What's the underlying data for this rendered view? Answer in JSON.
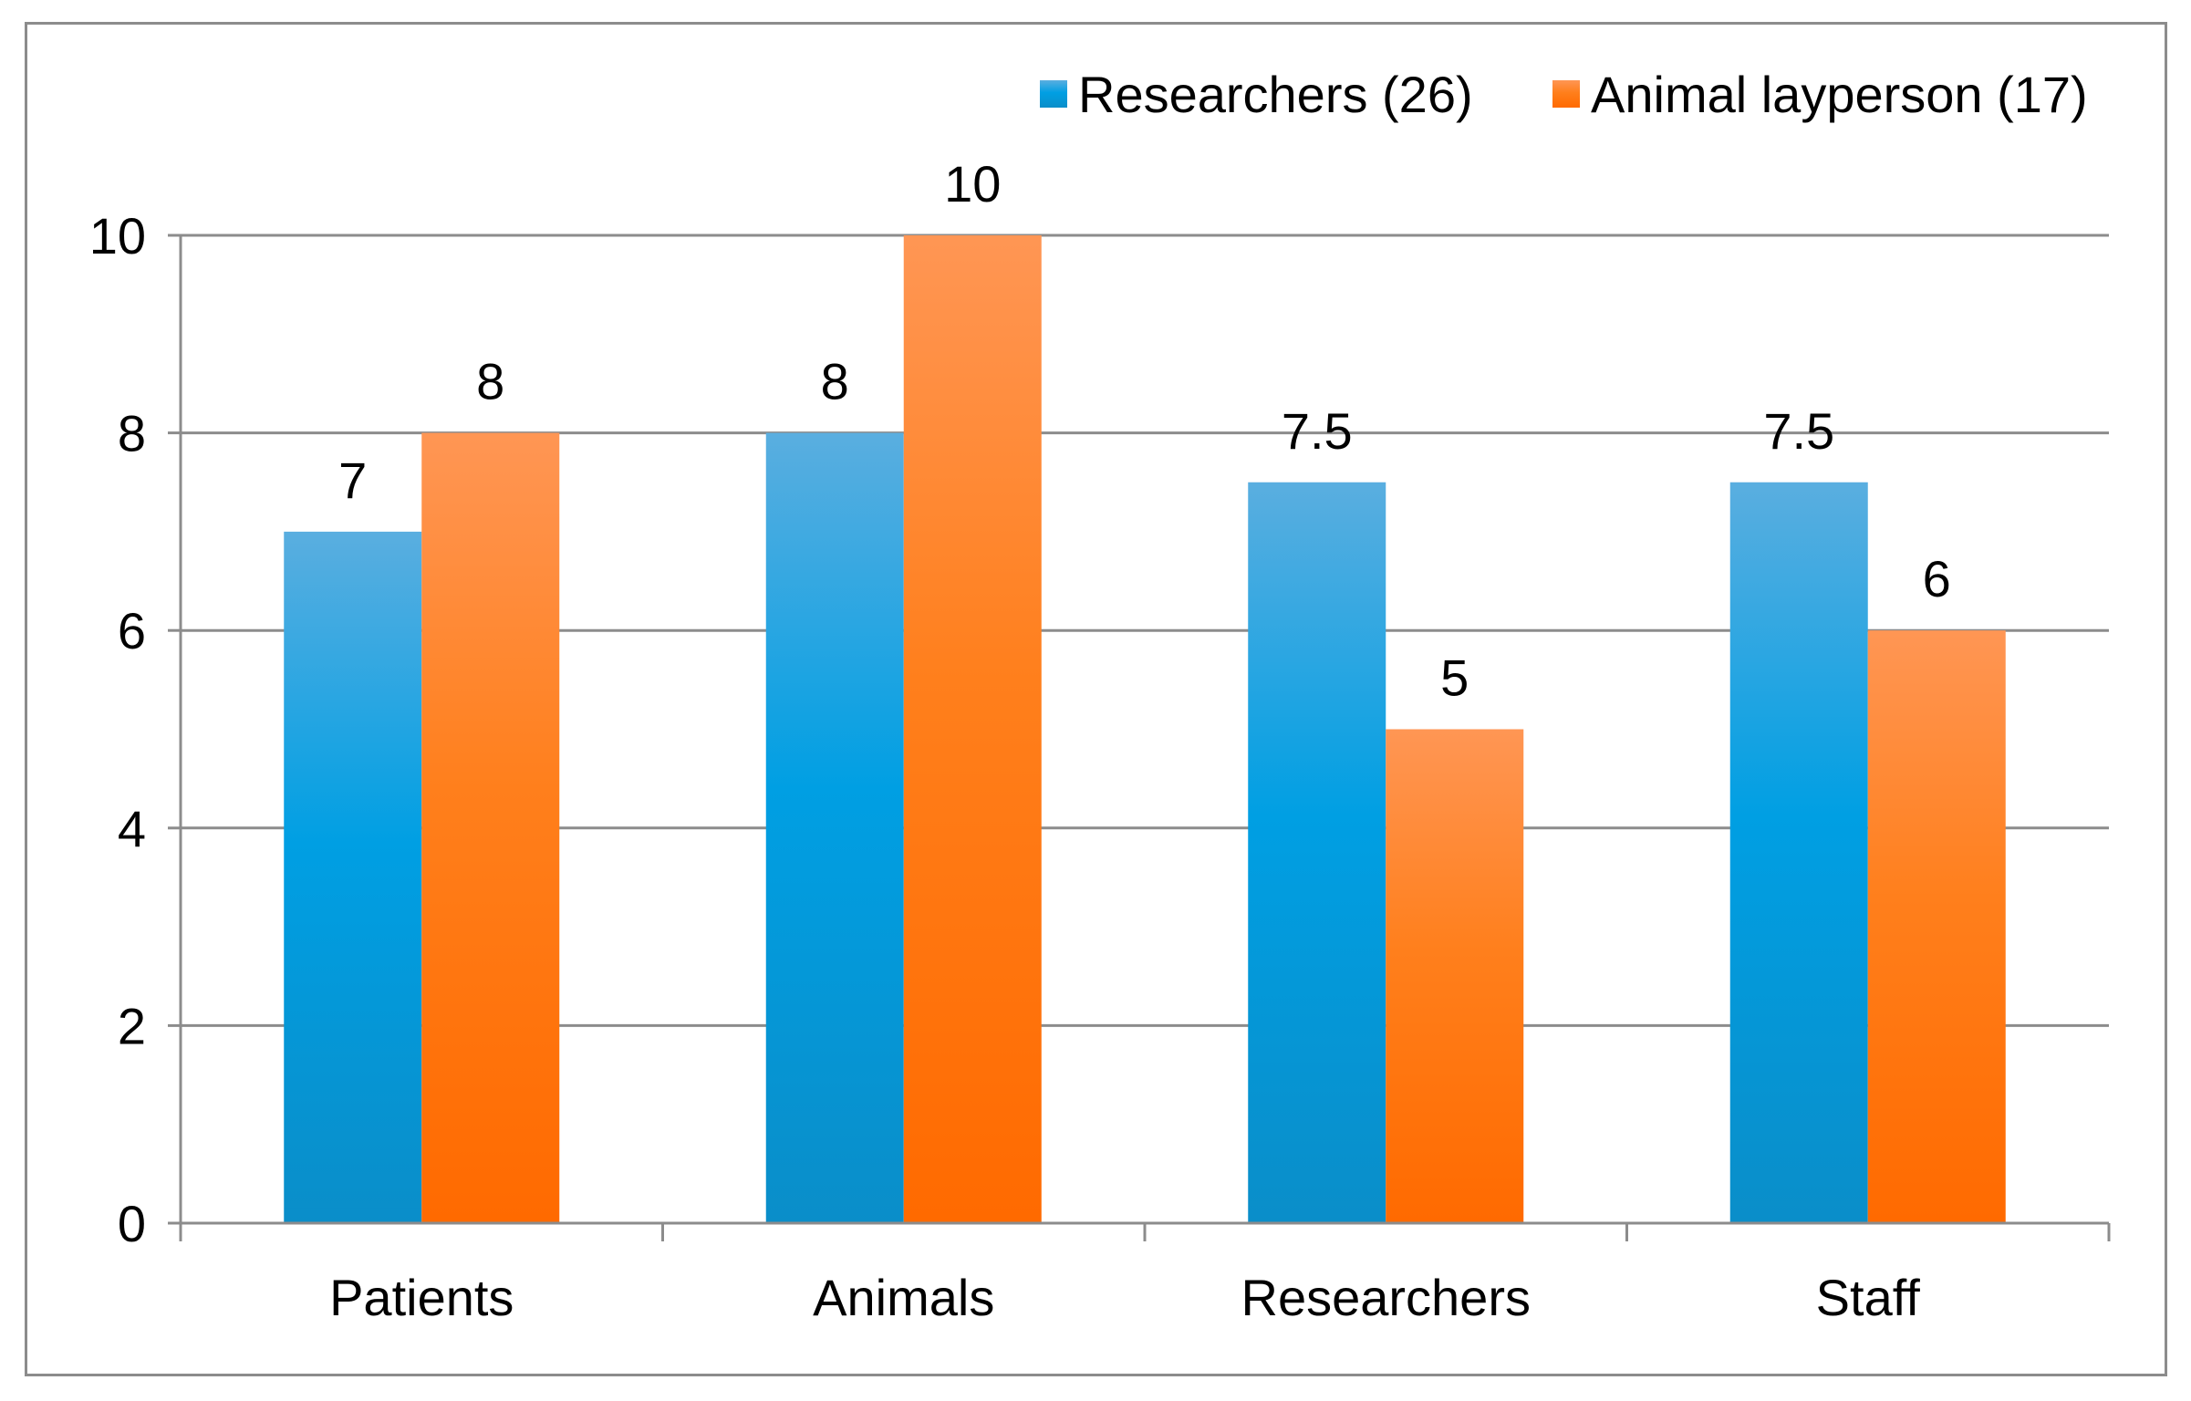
{
  "chart_data": {
    "type": "bar",
    "title": "",
    "xlabel": "",
    "ylabel": "",
    "categories": [
      "Patients",
      "Animals",
      "Researchers",
      "Staff"
    ],
    "series": [
      {
        "name": "Researchers (26)",
        "values": [
          7,
          8,
          7.5,
          7.5
        ],
        "value_labels": [
          "7",
          "8",
          "7.5",
          "7.5"
        ],
        "color_top": "#5aaee0",
        "color_mid": "#009fe3",
        "color_bottom": "#0a8ec9"
      },
      {
        "name": "Animal layperson (17)",
        "values": [
          8,
          10,
          5,
          6
        ],
        "value_labels": [
          "8",
          "10",
          "5",
          "6"
        ],
        "color_top": "#ff9654",
        "color_mid": "#ff7f1c",
        "color_bottom": "#ff6a00"
      }
    ],
    "ylim": [
      0,
      10
    ],
    "yticks": [
      "0",
      "2",
      "4",
      "6",
      "8",
      "10"
    ],
    "grid": true,
    "legend_position": "top-right"
  },
  "colors": {
    "gridline": "#8c8c8c",
    "axis": "#8c8c8c",
    "frame": "#8c8c8c"
  }
}
